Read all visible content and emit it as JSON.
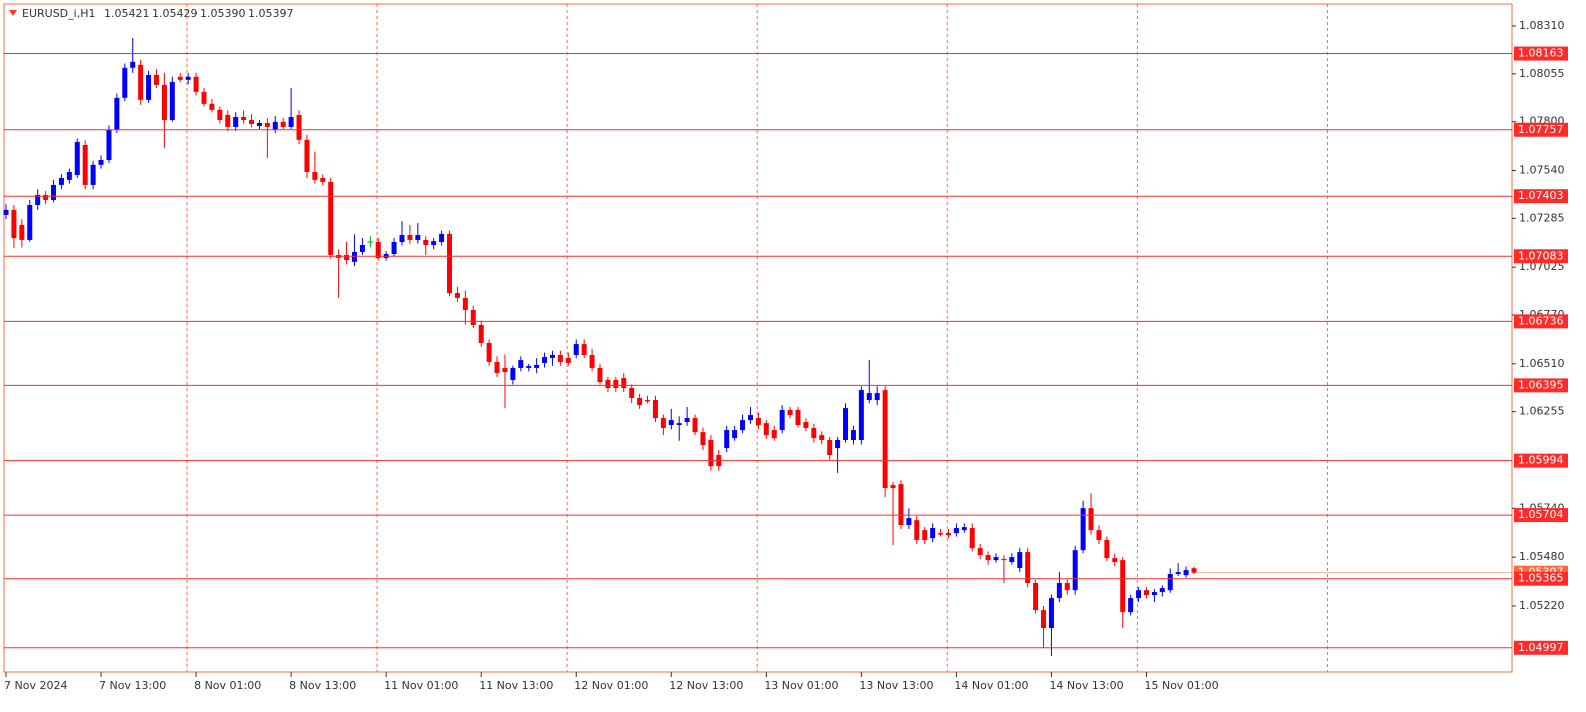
{
  "chart_data": {
    "type": "candlestick",
    "title": "EURUSD_i,H1",
    "header_ohlc": {
      "values": [
        1.05421,
        1.05429,
        1.0539,
        1.05397
      ],
      "value_labels": [
        "1.05421",
        "1.05429",
        "1.05390",
        "1.05397"
      ]
    },
    "bull_color": "#0000ff",
    "bear_color": "#ff0000",
    "doji_color": "#00b000",
    "level_color": "#ff2a2a",
    "separator_color": "#ff6a3d",
    "ylim": [
      1.04868,
      1.08427
    ],
    "yticks": [
      {
        "value": 1.0831,
        "label": "1.08310"
      },
      1.08055,
      {
        "value": 1.078,
        "label": "1.07800"
      },
      {
        "value": 1.0754,
        "label": "1.07540"
      },
      1.07285,
      1.07025,
      {
        "value": 1.0677,
        "label": "1.06770"
      },
      {
        "value": 1.0651,
        "label": "1.06510"
      },
      1.06255,
      {
        "value": 1.0574,
        "label": "1.05740"
      },
      {
        "value": 1.0548,
        "label": "1.05480"
      },
      {
        "value": 1.0522,
        "label": "1.05220"
      }
    ],
    "levels": [
      1.08163,
      1.07757,
      1.07403,
      1.07083,
      1.06736,
      1.06395,
      1.05994,
      1.05704,
      1.05365,
      1.04997
    ],
    "categories": [
      "7 Nov 2024",
      null,
      null,
      null,
      null,
      null,
      null,
      null,
      null,
      null,
      null,
      null,
      "7 Nov 13:00",
      null,
      null,
      null,
      null,
      null,
      null,
      null,
      null,
      null,
      null,
      null,
      "8 Nov 01:00",
      null,
      null,
      null,
      null,
      null,
      null,
      null,
      null,
      null,
      null,
      null,
      "8 Nov 13:00",
      null,
      null,
      null,
      null,
      null,
      null,
      null,
      null,
      null,
      null,
      null,
      "11 Nov 01:00",
      null,
      null,
      null,
      null,
      null,
      null,
      null,
      null,
      null,
      null,
      null,
      "11 Nov 13:00",
      null,
      null,
      null,
      null,
      null,
      null,
      null,
      null,
      null,
      null,
      null,
      "12 Nov 01:00",
      null,
      null,
      null,
      null,
      null,
      null,
      null,
      null,
      null,
      null,
      null,
      "12 Nov 13:00",
      null,
      null,
      null,
      null,
      null,
      null,
      null,
      null,
      null,
      null,
      null,
      "13 Nov 01:00",
      null,
      null,
      null,
      null,
      null,
      null,
      null,
      null,
      null,
      null,
      null,
      "13 Nov 13:00",
      null,
      null,
      null,
      null,
      null,
      null,
      null,
      null,
      null,
      null,
      null,
      "14 Nov 01:00",
      null,
      null,
      null,
      null,
      null,
      null,
      null,
      null,
      null,
      null,
      null,
      "14 Nov 13:00",
      null,
      null,
      null,
      null,
      null,
      null,
      null,
      null,
      null,
      null,
      null,
      "15 Nov 01:00",
      null,
      null,
      null,
      null,
      null,
      null
    ],
    "ohlc": [
      [
        1.07303,
        1.0736,
        1.0728,
        1.0733
      ],
      [
        1.0733,
        1.07356,
        1.07127,
        1.0718
      ],
      [
        1.0725,
        1.0728,
        1.0713,
        1.0717
      ],
      [
        1.0717,
        1.07383,
        1.0716,
        1.07356
      ],
      [
        1.07356,
        1.0744,
        1.0733,
        1.0741
      ],
      [
        1.0741,
        1.0743,
        1.0736,
        1.07383
      ],
      [
        1.07383,
        1.0749,
        1.0737,
        1.07463
      ],
      [
        1.07463,
        1.0752,
        1.0744,
        1.075
      ],
      [
        1.0749,
        1.0755,
        1.0747,
        1.07532
      ],
      [
        1.07516,
        1.0771,
        1.075,
        1.07692
      ],
      [
        1.07676,
        1.077,
        1.0744,
        1.07463
      ],
      [
        1.07463,
        1.0759,
        1.0744,
        1.0757
      ],
      [
        1.0757,
        1.0762,
        1.0755,
        1.07596
      ],
      [
        1.07596,
        1.0778,
        1.0758,
        1.07756
      ],
      [
        1.07756,
        1.0795,
        1.0774,
        1.07927
      ],
      [
        1.07927,
        1.0811,
        1.0791,
        1.08087
      ],
      [
        1.08087,
        1.08246,
        1.0806,
        1.08119
      ],
      [
        1.08103,
        1.0813,
        1.0789,
        1.07916
      ],
      [
        1.07916,
        1.0807,
        1.079,
        1.08049
      ],
      [
        1.08049,
        1.0808,
        1.0798,
        1.07996
      ],
      [
        1.07996,
        1.0806,
        1.0766,
        1.07809
      ],
      [
        1.07809,
        1.0804,
        1.078,
        1.08012
      ],
      [
        1.08039,
        1.0806,
        1.0801,
        1.08023
      ],
      [
        1.08023,
        1.0806,
        1.08,
        1.08039
      ],
      [
        1.08039,
        1.0806,
        1.0794,
        1.07959
      ],
      [
        1.07959,
        1.0798,
        1.0788,
        1.07895
      ],
      [
        1.07895,
        1.0792,
        1.0785,
        1.07863
      ],
      [
        1.07863,
        1.0788,
        1.0779,
        1.07809
      ],
      [
        1.07836,
        1.0786,
        1.0775,
        1.07772
      ],
      [
        1.07772,
        1.0785,
        1.0775,
        1.07825
      ],
      [
        1.07825,
        1.0786,
        1.0779,
        1.07809
      ],
      [
        1.07809,
        1.0784,
        1.0777,
        1.07788
      ],
      [
        1.07777,
        1.0781,
        1.0776,
        1.07793
      ],
      [
        1.07793,
        1.0782,
        1.07607,
        1.07772
      ],
      [
        1.07756,
        1.0783,
        1.0774,
        1.07799
      ],
      [
        1.07799,
        1.0782,
        1.0776,
        1.07772
      ],
      [
        1.07772,
        1.0798,
        1.0776,
        1.07825
      ],
      [
        1.07836,
        1.0786,
        1.0768,
        1.07703
      ],
      [
        1.07703,
        1.0773,
        1.075,
        1.07532
      ],
      [
        1.07532,
        1.0764,
        1.0747,
        1.0749
      ],
      [
        1.075,
        1.0752,
        1.0746,
        1.07479
      ],
      [
        1.07479,
        1.075,
        1.0707,
        1.0709
      ],
      [
        1.0709,
        1.0712,
        1.06861,
        1.07074
      ],
      [
        1.0709,
        1.0716,
        1.0704,
        1.07063
      ],
      [
        1.07053,
        1.072,
        1.0703,
        1.07106
      ],
      [
        1.07106,
        1.0718,
        1.0709,
        1.07143
      ],
      [
        1.07159,
        1.0719,
        1.0713,
        1.07159
      ],
      [
        1.07159,
        1.0718,
        1.0706,
        1.07074
      ],
      [
        1.07074,
        1.0711,
        1.0706,
        1.07095
      ],
      [
        1.07095,
        1.0718,
        1.0708,
        1.07159
      ],
      [
        1.07159,
        1.0727,
        1.0714,
        1.07196
      ],
      [
        1.07196,
        1.0725,
        1.0715,
        1.0717
      ],
      [
        1.0717,
        1.0726,
        1.0715,
        1.07196
      ],
      [
        1.0717,
        1.0719,
        1.0709,
        1.07143
      ],
      [
        1.07143,
        1.0718,
        1.0712,
        1.07164
      ],
      [
        1.07159,
        1.0722,
        1.0714,
        1.07202
      ],
      [
        1.07202,
        1.0722,
        1.0687,
        1.06887
      ],
      [
        1.06887,
        1.0692,
        1.0684,
        1.06861
      ],
      [
        1.06861,
        1.069,
        1.0672,
        1.06797
      ],
      [
        1.06797,
        1.0682,
        1.067,
        1.06717
      ],
      [
        1.06717,
        1.0674,
        1.066,
        1.06621
      ],
      [
        1.06621,
        1.0664,
        1.065,
        1.0652
      ],
      [
        1.0652,
        1.0655,
        1.0644,
        1.06461
      ],
      [
        1.06488,
        1.0656,
        1.06274,
        1.06466
      ],
      [
        1.06424,
        1.065,
        1.064,
        1.06488
      ],
      [
        1.06488,
        1.0655,
        1.0647,
        1.0653
      ],
      [
        1.06488,
        1.0651,
        1.0647,
        1.06498
      ],
      [
        1.06488,
        1.0654,
        1.0646,
        1.06504
      ],
      [
        1.06514,
        1.0657,
        1.0649,
        1.06546
      ],
      [
        1.06541,
        1.0658,
        1.065,
        1.06557
      ],
      [
        1.06557,
        1.0658,
        1.065,
        1.0652
      ],
      [
        1.06541,
        1.0657,
        1.065,
        1.06514
      ],
      [
        1.06557,
        1.0664,
        1.0654,
        1.06615
      ],
      [
        1.06615,
        1.0664,
        1.0654,
        1.06557
      ],
      [
        1.06557,
        1.0659,
        1.0647,
        1.06488
      ],
      [
        1.06488,
        1.0651,
        1.064,
        1.06413
      ],
      [
        1.06424,
        1.0644,
        1.0636,
        1.06381
      ],
      [
        1.06424,
        1.0644,
        1.0636,
        1.06381
      ],
      [
        1.06434,
        1.0646,
        1.0636,
        1.06381
      ],
      [
        1.06381,
        1.064,
        1.063,
        1.06328
      ],
      [
        1.06328,
        1.0635,
        1.0627,
        1.0629
      ],
      [
        1.06317,
        1.0634,
        1.063,
        1.0631
      ],
      [
        1.06317,
        1.0634,
        1.062,
        1.06221
      ],
      [
        1.06221,
        1.0624,
        1.0613,
        1.06168
      ],
      [
        1.06184,
        1.0627,
        1.0616,
        1.0621
      ],
      [
        1.06184,
        1.0623,
        1.061,
        1.06194
      ],
      [
        1.062,
        1.0628,
        1.0618,
        1.06221
      ],
      [
        1.06221,
        1.0624,
        1.0613,
        1.06146
      ],
      [
        1.06146,
        1.0617,
        1.0605,
        1.06077
      ],
      [
        1.06104,
        1.0613,
        1.0594,
        1.05965
      ],
      [
        1.06024,
        1.0605,
        1.0594,
        1.05965
      ],
      [
        1.06061,
        1.0618,
        1.0604,
        1.06157
      ],
      [
        1.06114,
        1.0618,
        1.061,
        1.06157
      ],
      [
        1.06157,
        1.0624,
        1.0614,
        1.0621
      ],
      [
        1.0621,
        1.0628,
        1.0619,
        1.06237
      ],
      [
        1.06221,
        1.0625,
        1.0616,
        1.06184
      ],
      [
        1.06194,
        1.0621,
        1.0611,
        1.0613
      ],
      [
        1.06157,
        1.0618,
        1.061,
        1.06114
      ],
      [
        1.06157,
        1.0629,
        1.0614,
        1.06264
      ],
      [
        1.06264,
        1.0628,
        1.0622,
        1.06237
      ],
      [
        1.06264,
        1.0628,
        1.0617,
        1.06184
      ],
      [
        1.062,
        1.0622,
        1.0615,
        1.06168
      ],
      [
        1.06168,
        1.0619,
        1.0609,
        1.06114
      ],
      [
        1.0613,
        1.0615,
        1.0608,
        1.06104
      ],
      [
        1.06104,
        1.0612,
        1.06,
        1.06024
      ],
      [
        1.06061,
        1.0612,
        1.05928,
        1.06104
      ],
      [
        1.06104,
        1.063,
        1.0609,
        1.06274
      ],
      [
        1.06104,
        1.0618,
        1.0608,
        1.06157
      ],
      [
        1.06104,
        1.0639,
        1.0608,
        1.0637
      ],
      [
        1.06317,
        1.0653,
        1.063,
        1.06354
      ],
      [
        1.06317,
        1.0639,
        1.0629,
        1.06354
      ],
      [
        1.0637,
        1.0639,
        1.058,
        1.05848
      ],
      [
        1.05864,
        1.0588,
        1.05544,
        1.05848
      ],
      [
        1.05869,
        1.0589,
        1.0563,
        1.05651
      ],
      [
        1.05651,
        1.0574,
        1.0563,
        1.05688
      ],
      [
        1.05677,
        1.057,
        1.0555,
        1.05571
      ],
      [
        1.05624,
        1.0564,
        1.0555,
        1.05571
      ],
      [
        1.05581,
        1.0566,
        1.0556,
        1.05635
      ],
      [
        1.05608,
        1.0563,
        1.0559,
        1.056
      ],
      [
        1.05608,
        1.0563,
        1.0558,
        1.05597
      ],
      [
        1.05608,
        1.0566,
        1.0559,
        1.05635
      ],
      [
        1.05624,
        1.0566,
        1.0561,
        1.0564
      ],
      [
        1.05635,
        1.0566,
        1.0551,
        1.05528
      ],
      [
        1.05528,
        1.0555,
        1.0547,
        1.05491
      ],
      [
        1.05491,
        1.0551,
        1.0544,
        1.05464
      ],
      [
        1.05464,
        1.055,
        1.0545,
        1.0548
      ],
      [
        1.0547,
        1.0549,
        1.05342,
        1.05464
      ],
      [
        1.05454,
        1.055,
        1.0544,
        1.0548
      ],
      [
        1.05422,
        1.0553,
        1.054,
        1.05507
      ],
      [
        1.05507,
        1.0553,
        1.0532,
        1.05342
      ],
      [
        1.05342,
        1.0536,
        1.0518,
        1.05198
      ],
      [
        1.05198,
        1.0522,
        1.04995,
        1.05102
      ],
      [
        1.05102,
        1.0528,
        1.04953,
        1.05262
      ],
      [
        1.05262,
        1.054,
        1.0524,
        1.05342
      ],
      [
        1.05342,
        1.0536,
        1.0528,
        1.05304
      ],
      [
        1.05304,
        1.0554,
        1.0528,
        1.05517
      ],
      [
        1.05517,
        1.0578,
        1.055,
        1.05741
      ],
      [
        1.05741,
        1.05821,
        1.056,
        1.05624
      ],
      [
        1.05624,
        1.0565,
        1.0555,
        1.05571
      ],
      [
        1.05571,
        1.0559,
        1.0546,
        1.05475
      ],
      [
        1.05475,
        1.055,
        1.0543,
        1.05454
      ],
      [
        1.05464,
        1.0548,
        1.05102,
        1.05187
      ],
      [
        1.05187,
        1.0528,
        1.0517,
        1.05262
      ],
      [
        1.05262,
        1.0532,
        1.0524,
        1.05304
      ],
      [
        1.05304,
        1.0532,
        1.0526,
        1.05278
      ],
      [
        1.05278,
        1.0531,
        1.0524,
        1.05294
      ],
      [
        1.05294,
        1.0533,
        1.0527,
        1.05315
      ],
      [
        1.05304,
        1.0542,
        1.0529,
        1.0539
      ],
      [
        1.0539,
        1.05448,
        1.0538,
        1.054
      ],
      [
        1.05384,
        1.0543,
        1.0537,
        1.05411
      ],
      [
        1.05421,
        1.05429,
        1.0539,
        1.05397
      ]
    ]
  }
}
